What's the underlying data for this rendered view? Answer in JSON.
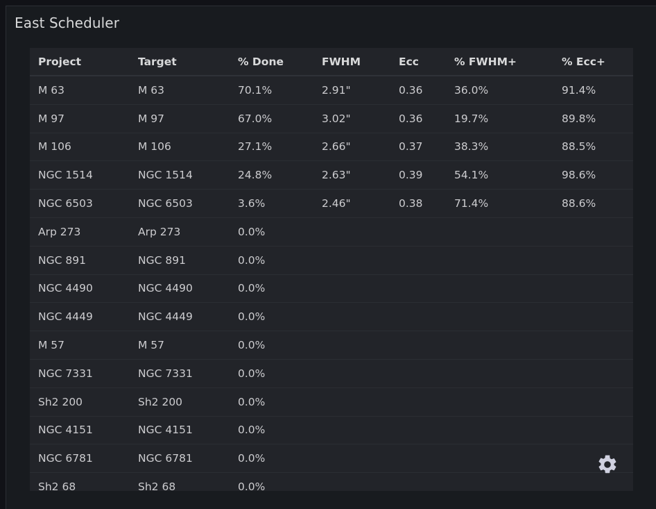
{
  "panel": {
    "title": "East Scheduler"
  },
  "table": {
    "columns": [
      "Project",
      "Target",
      "% Done",
      "FWHM",
      "Ecc",
      "% FWHM+",
      "% Ecc+"
    ],
    "rows": [
      [
        "M 63",
        "M 63",
        "70.1%",
        "2.91\"",
        "0.36",
        "36.0%",
        "91.4%"
      ],
      [
        "M 97",
        "M 97",
        "67.0%",
        "3.02\"",
        "0.36",
        "19.7%",
        "89.8%"
      ],
      [
        "M 106",
        "M 106",
        "27.1%",
        "2.66\"",
        "0.37",
        "38.3%",
        "88.5%"
      ],
      [
        "NGC 1514",
        "NGC 1514",
        "24.8%",
        "2.63\"",
        "0.39",
        "54.1%",
        "98.6%"
      ],
      [
        "NGC 6503",
        "NGC 6503",
        "3.6%",
        "2.46\"",
        "0.38",
        "71.4%",
        "88.6%"
      ],
      [
        "Arp 273",
        "Arp 273",
        "0.0%",
        "",
        "",
        "",
        ""
      ],
      [
        "NGC 891",
        "NGC 891",
        "0.0%",
        "",
        "",
        "",
        ""
      ],
      [
        "NGC 4490",
        "NGC 4490",
        "0.0%",
        "",
        "",
        "",
        ""
      ],
      [
        "NGC 4449",
        "NGC 4449",
        "0.0%",
        "",
        "",
        "",
        ""
      ],
      [
        "M 57",
        "M 57",
        "0.0%",
        "",
        "",
        "",
        ""
      ],
      [
        "NGC 7331",
        "NGC 7331",
        "0.0%",
        "",
        "",
        "",
        ""
      ],
      [
        "Sh2 200",
        "Sh2 200",
        "0.0%",
        "",
        "",
        "",
        ""
      ],
      [
        "NGC 4151",
        "NGC 4151",
        "0.0%",
        "",
        "",
        "",
        ""
      ],
      [
        "NGC 6781",
        "NGC 6781",
        "0.0%",
        "",
        "",
        "",
        ""
      ],
      [
        "Sh2 68",
        "Sh2 68",
        "0.0%",
        "",
        "",
        "",
        ""
      ]
    ]
  },
  "settings": {
    "icon": "gear-icon",
    "color": "#d0d1e0"
  },
  "colors": {
    "background": "#111217",
    "panel": "#181b1f",
    "table": "#222429",
    "text": "#cccccf",
    "header_text": "#d8d9da"
  }
}
